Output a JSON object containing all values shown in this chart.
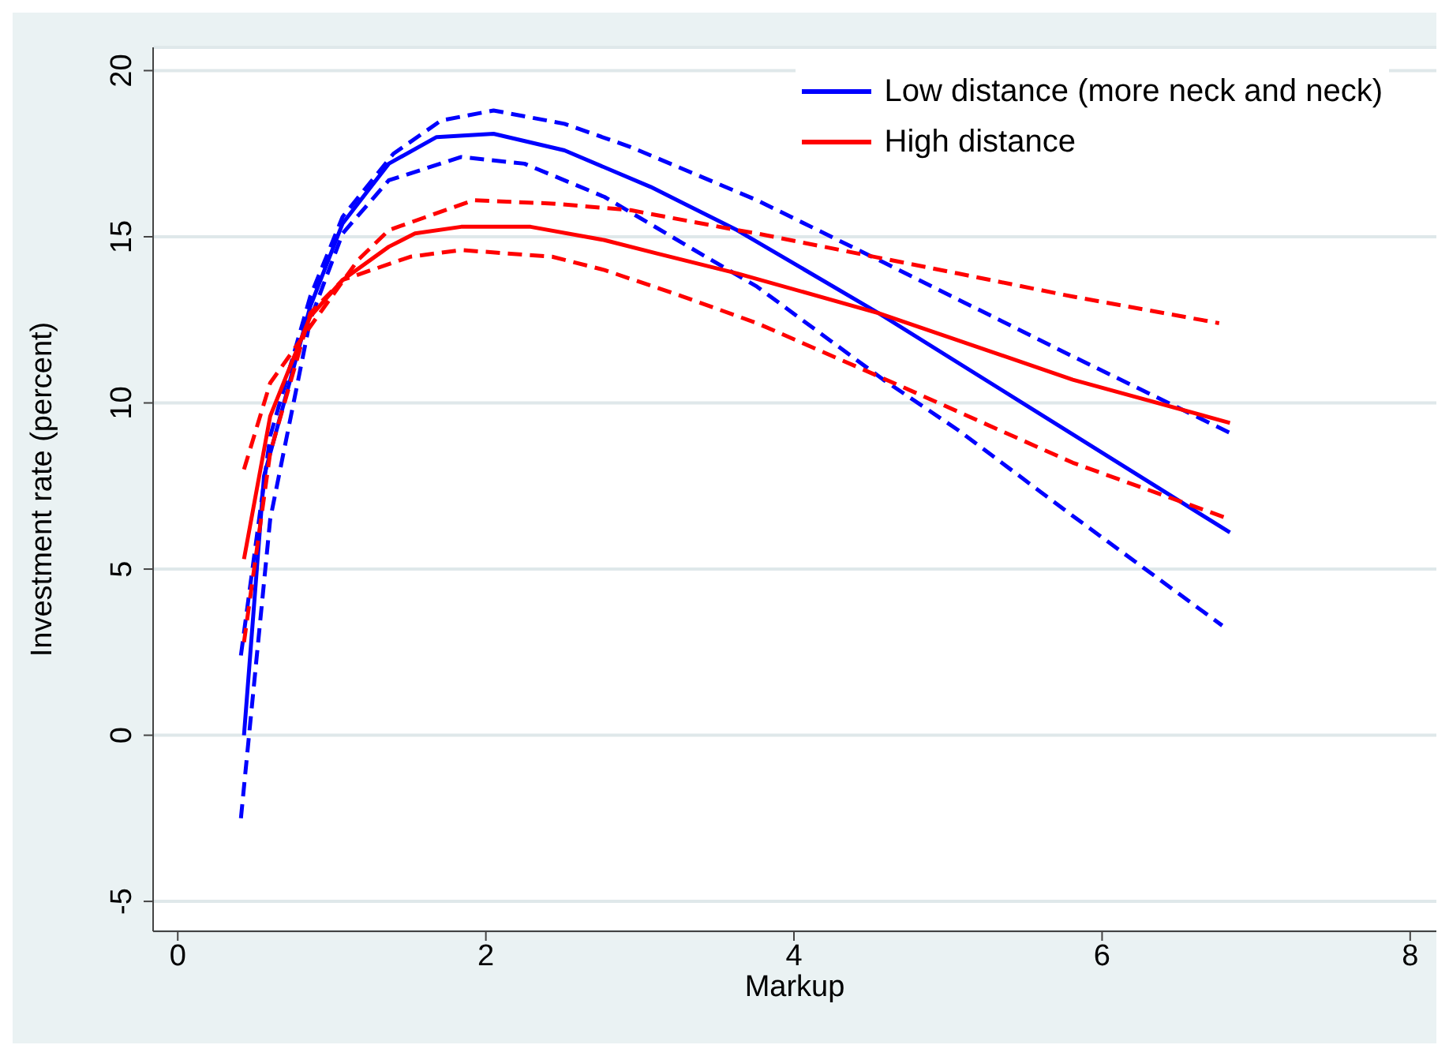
{
  "chart_data": {
    "type": "line",
    "xlabel": "Markup",
    "ylabel": "Investment rate (percent)",
    "xlim": [
      -0.16,
      8.17
    ],
    "ylim": [
      -5.9,
      20.7
    ],
    "xticks": [
      0,
      2,
      4,
      6,
      8
    ],
    "yticks": [
      -5,
      0,
      5,
      10,
      15,
      20
    ],
    "grid": "y",
    "legend": "top right",
    "marker": "none",
    "series": [
      {
        "name": "Low distance (more neck and neck)",
        "color": "#0000ff",
        "line_style": "solid",
        "x": [
          0.43,
          0.56,
          0.86,
          1.07,
          1.37,
          1.68,
          2.05,
          2.51,
          3.07,
          3.63,
          4.55,
          6.83
        ],
        "values": [
          0,
          7.8,
          12.9,
          15.4,
          17.2,
          18.0,
          18.1,
          17.6,
          16.5,
          15.2,
          12.7,
          6.1
        ]
      },
      {
        "color": "#0000ff",
        "line_style": "dashed",
        "x": [
          0.41,
          0.6,
          0.86,
          1.07,
          1.4,
          1.71,
          2.05,
          2.51,
          2.94,
          3.76,
          4.55,
          5.81,
          6.83
        ],
        "values": [
          2.4,
          9,
          13.2,
          15.6,
          17.5,
          18.5,
          18.8,
          18.4,
          17.7,
          16.1,
          14.3,
          11.4,
          9.1
        ]
      },
      {
        "color": "#0000ff",
        "line_style": "dashed",
        "x": [
          0.41,
          0.6,
          0.86,
          1.07,
          1.37,
          1.84,
          2.25,
          2.77,
          3.28,
          3.76,
          4.58,
          5.06,
          5.81,
          6.78
        ],
        "values": [
          -2.5,
          6.5,
          12.5,
          15.1,
          16.7,
          17.4,
          17.2,
          16.2,
          14.8,
          13.5,
          10.7,
          9.2,
          6.6,
          3.3
        ]
      },
      {
        "name": "High distance",
        "color": "#ff0000",
        "line_style": "solid",
        "x": [
          0.43,
          0.6,
          0.86,
          1.07,
          1.37,
          1.54,
          1.84,
          2.29,
          2.77,
          3.11,
          3.63,
          4.55,
          5.81,
          6.83
        ],
        "values": [
          5.3,
          9.6,
          12.6,
          13.7,
          14.7,
          15.1,
          15.3,
          15.3,
          14.9,
          14.5,
          13.9,
          12.7,
          10.7,
          9.4
        ]
      },
      {
        "color": "#ff0000",
        "line_style": "dashed",
        "x": [
          0.43,
          0.6,
          0.86,
          1.17,
          1.37,
          1.92,
          2.43,
          2.94,
          3.63,
          3.76,
          5.06,
          5.81,
          6.76
        ],
        "values": [
          8.0,
          10.6,
          12.3,
          14.3,
          15.2,
          16.1,
          16.0,
          15.8,
          15.2,
          15.1,
          13.9,
          13.2,
          12.4
        ]
      },
      {
        "color": "#ff0000",
        "line_style": "dashed",
        "x": [
          0.43,
          0.6,
          0.86,
          1.07,
          1.51,
          1.84,
          2.43,
          2.77,
          3.28,
          3.76,
          4.55,
          5.81,
          6.83
        ],
        "values": [
          2.8,
          8.5,
          12.7,
          13.7,
          14.4,
          14.6,
          14.4,
          14.0,
          13.2,
          12.4,
          10.8,
          8.2,
          6.5
        ]
      }
    ]
  }
}
